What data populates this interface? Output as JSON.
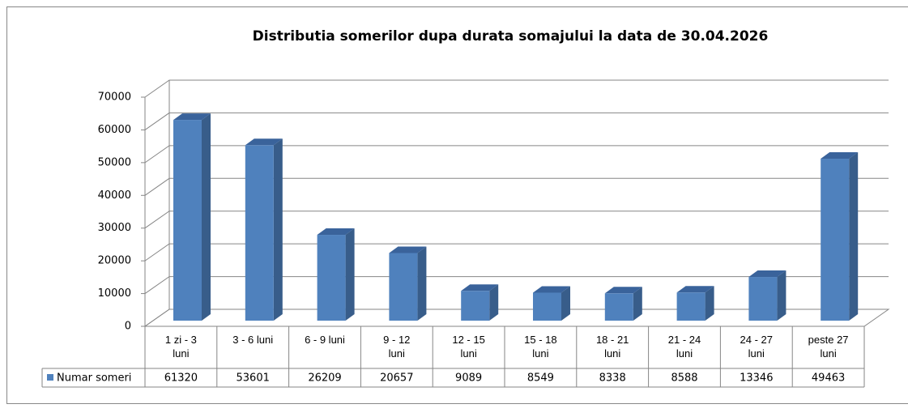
{
  "chart_data": {
    "type": "bar3d",
    "title": "Distributia somerilor dupa durata somajului la data de 30.04.2026",
    "categories": [
      "1 zi - 3 luni",
      "3 - 6 luni",
      "6 - 9 luni",
      "9 - 12 luni",
      "12 - 15 luni",
      "15 - 18 luni",
      "18 - 21 luni",
      "21 - 24 luni",
      "24 - 27 luni",
      "peste 27 luni"
    ],
    "series": [
      {
        "name": "Numar someri",
        "color": "#4f81bd",
        "values": [
          61320,
          53601,
          26209,
          20657,
          9089,
          8549,
          8338,
          8588,
          13346,
          49463
        ]
      }
    ],
    "ylim": [
      0,
      70000
    ],
    "yticks": [
      0,
      10000,
      20000,
      30000,
      40000,
      50000,
      60000,
      70000
    ],
    "grid": true,
    "data_table": true
  }
}
